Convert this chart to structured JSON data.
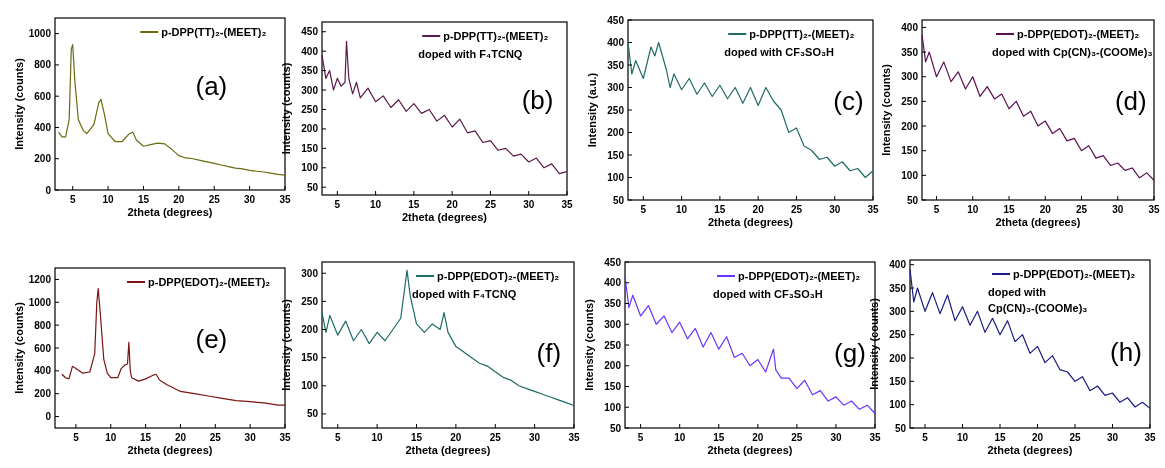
{
  "chart_data": [
    {
      "type": "line",
      "xlabel": "2theta (degrees)",
      "ylabel": "Intensity (counts)",
      "xlim": [
        2.5,
        35
      ],
      "xticks": [
        5,
        10,
        15,
        20,
        25,
        30,
        35
      ],
      "ylim": [
        0,
        1100
      ],
      "yticks": [
        0,
        200,
        400,
        600,
        800,
        1000
      ],
      "legend": "top right",
      "annotations": [
        "(a)"
      ],
      "series": [
        {
          "name": "p-DPP(TT)₂-(MEET)₂",
          "color": "#6b6b10",
          "x": [
            3,
            3.5,
            4,
            4.5,
            4.8,
            5,
            5.3,
            5.8,
            6.5,
            7,
            8,
            8.7,
            9,
            9.5,
            10,
            11,
            12,
            13,
            13.5,
            14,
            15,
            16,
            17,
            18,
            19,
            20,
            21,
            22,
            23,
            24,
            25,
            26,
            27,
            28,
            29,
            30,
            31,
            32,
            33,
            34,
            35
          ],
          "values": [
            370,
            340,
            340,
            450,
            900,
            930,
            700,
            450,
            380,
            360,
            420,
            560,
            580,
            480,
            360,
            310,
            310,
            360,
            370,
            320,
            280,
            290,
            300,
            295,
            260,
            220,
            205,
            200,
            190,
            180,
            170,
            160,
            150,
            140,
            135,
            125,
            120,
            115,
            108,
            100,
            95
          ]
        }
      ]
    },
    {
      "type": "line",
      "xlabel": "2theta (degrees)",
      "ylabel": "Intensity (counts)",
      "xlim": [
        3,
        35
      ],
      "xticks": [
        5,
        10,
        15,
        20,
        25,
        30,
        35
      ],
      "ylim": [
        30,
        475
      ],
      "yticks": [
        50,
        100,
        150,
        200,
        250,
        300,
        350,
        400,
        450
      ],
      "legend": "top right",
      "annotations": [
        "doped with F₄TCNQ",
        "(b)"
      ],
      "series": [
        {
          "name": "p-DPP(TT)₂-(MEET)₂",
          "color": "#5a1a4a",
          "x": [
            3,
            3.5,
            4,
            4.5,
            5,
            5.5,
            6,
            6.2,
            6.5,
            7,
            7.5,
            8,
            9,
            10,
            11,
            12,
            13,
            14,
            15,
            16,
            17,
            18,
            19,
            20,
            21,
            22,
            23,
            24,
            25,
            26,
            27,
            28,
            29,
            30,
            31,
            32,
            33,
            34,
            35
          ],
          "values": [
            390,
            330,
            350,
            300,
            330,
            310,
            320,
            425,
            330,
            290,
            320,
            280,
            305,
            270,
            285,
            255,
            275,
            245,
            265,
            240,
            250,
            220,
            235,
            205,
            225,
            190,
            195,
            165,
            170,
            145,
            150,
            130,
            135,
            115,
            125,
            100,
            110,
            85,
            90
          ]
        }
      ]
    },
    {
      "type": "line",
      "xlabel": "2theta (degrees)",
      "ylabel": "Intensity (a.u.)",
      "xlim": [
        3,
        35
      ],
      "xticks": [
        5,
        10,
        15,
        20,
        25,
        30,
        35
      ],
      "ylim": [
        50,
        450
      ],
      "yticks": [
        50,
        100,
        150,
        200,
        250,
        300,
        350,
        400,
        450
      ],
      "legend": "top right",
      "annotations": [
        "doped with CF₃SO₃H",
        "(c)"
      ],
      "series": [
        {
          "name": "p-DPP(TT)₂-(MEET)₂",
          "color": "#1f6b66",
          "x": [
            3,
            3.5,
            4,
            5,
            6,
            6.5,
            7,
            8,
            8.5,
            9,
            10,
            11,
            12,
            13,
            14,
            15,
            16,
            17,
            18,
            19,
            20,
            21,
            22,
            23,
            24,
            25,
            26,
            27,
            28,
            29,
            30,
            31,
            32,
            33,
            34,
            35
          ],
          "values": [
            400,
            330,
            360,
            320,
            390,
            370,
            400,
            340,
            300,
            330,
            295,
            320,
            285,
            310,
            280,
            305,
            275,
            300,
            265,
            300,
            260,
            300,
            270,
            250,
            200,
            210,
            170,
            160,
            140,
            145,
            125,
            135,
            115,
            120,
            100,
            115
          ]
        }
      ]
    },
    {
      "type": "line",
      "xlabel": "2theta (degrees)",
      "ylabel": "Intensity (counts)",
      "xlim": [
        3,
        35
      ],
      "xticks": [
        5,
        10,
        15,
        20,
        25,
        30,
        35
      ],
      "ylim": [
        50,
        415
      ],
      "yticks": [
        50,
        100,
        150,
        200,
        250,
        300,
        350,
        400
      ],
      "legend": "top right",
      "annotations": [
        "doped with Cp(CN)₃-(COOMe)₃",
        "(d)"
      ],
      "series": [
        {
          "name": "p-DPP(EDOT)₂-(MEET)₂",
          "color": "#5a1050",
          "x": [
            3,
            3.5,
            4,
            5,
            6,
            7,
            8,
            9,
            10,
            11,
            12,
            13,
            14,
            15,
            16,
            17,
            18,
            19,
            20,
            21,
            22,
            23,
            24,
            25,
            26,
            27,
            28,
            29,
            30,
            31,
            32,
            33,
            34,
            35
          ],
          "values": [
            385,
            330,
            350,
            300,
            330,
            290,
            310,
            275,
            300,
            260,
            280,
            255,
            265,
            235,
            250,
            220,
            230,
            200,
            210,
            185,
            195,
            170,
            175,
            150,
            160,
            135,
            140,
            120,
            125,
            110,
            115,
            95,
            105,
            90
          ]
        }
      ]
    },
    {
      "type": "line",
      "xlabel": "2theta (degrees)",
      "ylabel": "Intensity (counts)",
      "xlim": [
        2,
        35
      ],
      "xticks": [
        5,
        10,
        15,
        20,
        25,
        30,
        35
      ],
      "ylim": [
        -100,
        1300
      ],
      "yticks": [
        0,
        200,
        400,
        600,
        800,
        1000,
        1200
      ],
      "legend": "top right",
      "annotations": [
        "(e)"
      ],
      "series": [
        {
          "name": "p-DPP(EDOT)₂-(MEET)₂",
          "color": "#7a1515",
          "x": [
            3,
            3.5,
            4,
            4.5,
            5,
            6,
            7,
            7.7,
            8,
            8.2,
            8.5,
            9,
            9.5,
            10,
            11,
            11.5,
            12,
            12.4,
            12.6,
            12.8,
            13,
            14,
            15,
            16,
            16.5,
            17,
            18,
            19,
            20,
            22,
            24,
            26,
            28,
            30,
            32,
            34,
            35
          ],
          "values": [
            370,
            340,
            330,
            440,
            420,
            380,
            390,
            550,
            1000,
            1120,
            900,
            500,
            380,
            340,
            340,
            420,
            450,
            460,
            650,
            400,
            340,
            310,
            330,
            360,
            370,
            320,
            280,
            250,
            220,
            200,
            180,
            160,
            140,
            130,
            120,
            100,
            100
          ]
        }
      ]
    },
    {
      "type": "line",
      "xlabel": "2theta (degrees)",
      "ylabel": "Intensity (counts)",
      "xlim": [
        3,
        35
      ],
      "xticks": [
        5,
        10,
        15,
        20,
        25,
        30,
        35
      ],
      "ylim": [
        25,
        320
      ],
      "yticks": [
        50,
        100,
        150,
        200,
        250,
        300
      ],
      "legend": "top right",
      "annotations": [
        "doped with F₄TCNQ",
        "(f)"
      ],
      "series": [
        {
          "name": "p-DPP(EDOT)₂-(MEET)₂",
          "color": "#1d6b66",
          "x": [
            3,
            3.5,
            4,
            5,
            6,
            7,
            8,
            9,
            10,
            11,
            12,
            13,
            13.8,
            14.2,
            15,
            16,
            17,
            18,
            18.5,
            19,
            20,
            21,
            22,
            23,
            24,
            25,
            26,
            27,
            28,
            29,
            30,
            31,
            32,
            33,
            34,
            35
          ],
          "values": [
            230,
            195,
            225,
            190,
            215,
            180,
            200,
            175,
            195,
            180,
            200,
            220,
            305,
            260,
            210,
            195,
            210,
            200,
            230,
            195,
            170,
            160,
            150,
            140,
            135,
            125,
            115,
            110,
            100,
            95,
            90,
            85,
            80,
            75,
            70,
            65
          ]
        }
      ]
    },
    {
      "type": "line",
      "xlabel": "2theta (degrees)",
      "ylabel": "Intensity (counts)",
      "xlim": [
        3,
        35
      ],
      "xticks": [
        5,
        10,
        15,
        20,
        25,
        30,
        35
      ],
      "ylim": [
        50,
        450
      ],
      "yticks": [
        50,
        100,
        150,
        200,
        250,
        300,
        350,
        400,
        450
      ],
      "legend": "top right",
      "annotations": [
        "doped with CF₃SO₃H",
        "(g)"
      ],
      "series": [
        {
          "name": "p-DPP(EDOT)₂-(MEET)₂",
          "color": "#6a33ff",
          "x": [
            3,
            3.5,
            4,
            5,
            6,
            7,
            8,
            9,
            10,
            11,
            12,
            13,
            14,
            15,
            16,
            17,
            18,
            19,
            20,
            21,
            22,
            22.3,
            23,
            24,
            25,
            26,
            27,
            28,
            29,
            30,
            31,
            32,
            33,
            34,
            35
          ],
          "values": [
            415,
            340,
            370,
            320,
            345,
            300,
            320,
            280,
            305,
            265,
            290,
            245,
            280,
            240,
            270,
            220,
            230,
            200,
            215,
            185,
            240,
            190,
            170,
            170,
            145,
            165,
            130,
            140,
            115,
            125,
            105,
            115,
            95,
            105,
            85
          ]
        }
      ]
    },
    {
      "type": "line",
      "xlabel": "2theta (degrees)",
      "ylabel": "Intensity (counts)",
      "xlim": [
        3,
        35
      ],
      "xticks": [
        5,
        10,
        15,
        20,
        25,
        30,
        35
      ],
      "ylim": [
        50,
        410
      ],
      "yticks": [
        50,
        100,
        150,
        200,
        250,
        300,
        350,
        400
      ],
      "legend": "top right",
      "annotations": [
        "doped with",
        "Cp(CN)₃-(COOMe)₃",
        "(h)"
      ],
      "series": [
        {
          "name": "p-DPP(EDOT)₂-(MEET)₂",
          "color": "#1a1a80",
          "x": [
            3,
            3.5,
            4,
            5,
            6,
            7,
            8,
            9,
            10,
            11,
            12,
            13,
            14,
            15,
            16,
            17,
            18,
            19,
            20,
            21,
            22,
            23,
            24,
            25,
            26,
            27,
            28,
            29,
            30,
            31,
            32,
            33,
            34,
            35
          ],
          "values": [
            390,
            320,
            350,
            300,
            340,
            295,
            335,
            280,
            310,
            270,
            300,
            255,
            285,
            250,
            280,
            235,
            250,
            210,
            225,
            190,
            205,
            175,
            170,
            150,
            160,
            130,
            140,
            120,
            125,
            105,
            115,
            95,
            105,
            92
          ]
        }
      ]
    }
  ]
}
